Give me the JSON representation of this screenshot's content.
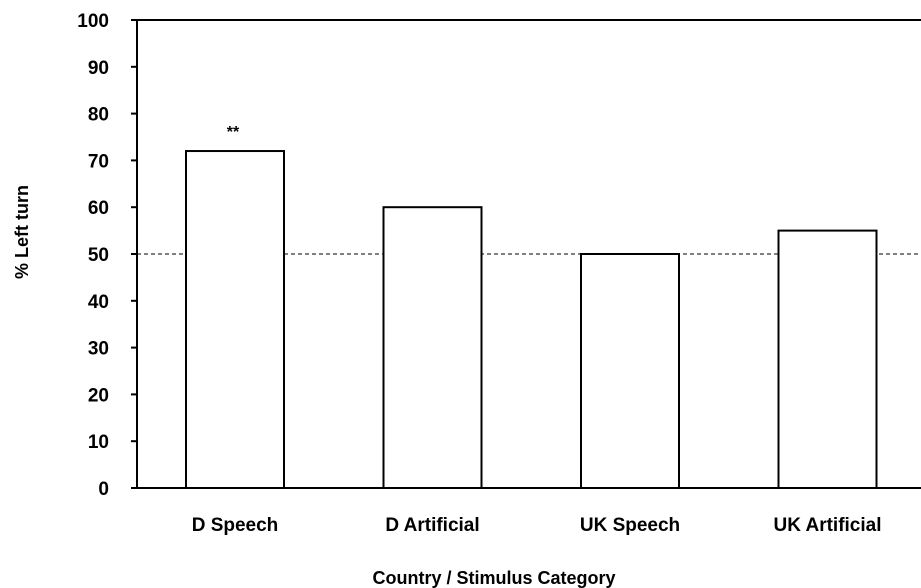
{
  "chart_data": {
    "type": "bar",
    "categories": [
      "D Speech",
      "D Artificial",
      "UK Speech",
      "UK Artificial"
    ],
    "values": [
      72,
      60,
      50,
      55
    ],
    "xlabel": "Country / Stimulus Category",
    "ylabel": "% Left turn",
    "ylim": [
      0,
      100
    ],
    "yticks": [
      0,
      10,
      20,
      30,
      40,
      50,
      60,
      70,
      80,
      90,
      100
    ],
    "reference_line": {
      "y": 50,
      "style": "dashed"
    },
    "annotations": [
      {
        "category": "D Speech",
        "text": "**"
      }
    ],
    "grid": false,
    "bar_fill": "#ffffff",
    "bar_stroke": "#000000"
  }
}
